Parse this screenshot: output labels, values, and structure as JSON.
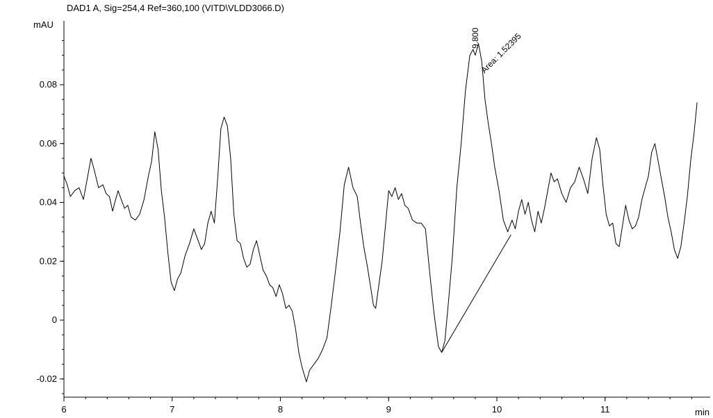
{
  "chart_data": {
    "type": "line",
    "title": "DAD1 A, Sig=254,4 Ref=360,100 (VITD\\VLDD3066.D)",
    "xlabel": "min",
    "ylabel": "mAU",
    "xlim": [
      6,
      12
    ],
    "ylim": [
      -0.02,
      0.098
    ],
    "x_ticks": [
      6,
      7,
      8,
      9,
      10,
      11
    ],
    "x_tick_labels": [
      "6",
      "7",
      "8",
      "9",
      "10",
      "11"
    ],
    "y_ticks": [
      -0.02,
      0,
      0.02,
      0.04,
      0.06,
      0.08
    ],
    "y_tick_labels": [
      "-0.02",
      "0",
      "0.02",
      "0.04",
      "0.06",
      "0.08"
    ],
    "grid": false,
    "series": [
      {
        "values": [
          [
            6.0,
            0.049
          ],
          [
            6.03,
            0.046
          ],
          [
            6.06,
            0.042
          ],
          [
            6.1,
            0.044
          ],
          [
            6.14,
            0.045
          ],
          [
            6.18,
            0.041
          ],
          [
            6.22,
            0.049
          ],
          [
            6.25,
            0.055
          ],
          [
            6.28,
            0.051
          ],
          [
            6.32,
            0.045
          ],
          [
            6.36,
            0.046
          ],
          [
            6.39,
            0.043
          ],
          [
            6.42,
            0.042
          ],
          [
            6.45,
            0.037
          ],
          [
            6.47,
            0.04
          ],
          [
            6.5,
            0.044
          ],
          [
            6.53,
            0.041
          ],
          [
            6.56,
            0.038
          ],
          [
            6.59,
            0.039
          ],
          [
            6.62,
            0.035
          ],
          [
            6.66,
            0.034
          ],
          [
            6.7,
            0.036
          ],
          [
            6.74,
            0.041
          ],
          [
            6.78,
            0.049
          ],
          [
            6.81,
            0.054
          ],
          [
            6.84,
            0.064
          ],
          [
            6.87,
            0.058
          ],
          [
            6.9,
            0.044
          ],
          [
            6.93,
            0.035
          ],
          [
            6.96,
            0.023
          ],
          [
            6.99,
            0.013
          ],
          [
            7.02,
            0.01
          ],
          [
            7.05,
            0.014
          ],
          [
            7.08,
            0.016
          ],
          [
            7.12,
            0.022
          ],
          [
            7.16,
            0.026
          ],
          [
            7.2,
            0.031
          ],
          [
            7.23,
            0.028
          ],
          [
            7.27,
            0.024
          ],
          [
            7.3,
            0.026
          ],
          [
            7.33,
            0.033
          ],
          [
            7.36,
            0.037
          ],
          [
            7.39,
            0.033
          ],
          [
            7.42,
            0.048
          ],
          [
            7.45,
            0.065
          ],
          [
            7.48,
            0.069
          ],
          [
            7.51,
            0.066
          ],
          [
            7.54,
            0.055
          ],
          [
            7.57,
            0.036
          ],
          [
            7.6,
            0.027
          ],
          [
            7.63,
            0.026
          ],
          [
            7.66,
            0.021
          ],
          [
            7.69,
            0.018
          ],
          [
            7.72,
            0.019
          ],
          [
            7.75,
            0.024
          ],
          [
            7.78,
            0.027
          ],
          [
            7.81,
            0.022
          ],
          [
            7.84,
            0.017
          ],
          [
            7.87,
            0.015
          ],
          [
            7.9,
            0.012
          ],
          [
            7.93,
            0.011
          ],
          [
            7.96,
            0.008
          ],
          [
            7.99,
            0.012
          ],
          [
            8.02,
            0.009
          ],
          [
            8.05,
            0.004
          ],
          [
            8.08,
            0.005
          ],
          [
            8.11,
            0.003
          ],
          [
            8.14,
            -0.003
          ],
          [
            8.17,
            -0.011
          ],
          [
            8.2,
            -0.016
          ],
          [
            8.24,
            -0.021
          ],
          [
            8.27,
            -0.017
          ],
          [
            8.31,
            -0.015
          ],
          [
            8.35,
            -0.013
          ],
          [
            8.39,
            -0.01
          ],
          [
            8.43,
            -0.006
          ],
          [
            8.47,
            0.005
          ],
          [
            8.51,
            0.017
          ],
          [
            8.55,
            0.03
          ],
          [
            8.59,
            0.046
          ],
          [
            8.63,
            0.052
          ],
          [
            8.67,
            0.045
          ],
          [
            8.71,
            0.042
          ],
          [
            8.74,
            0.033
          ],
          [
            8.77,
            0.025
          ],
          [
            8.8,
            0.019
          ],
          [
            8.83,
            0.012
          ],
          [
            8.86,
            0.005
          ],
          [
            8.88,
            0.004
          ],
          [
            8.91,
            0.012
          ],
          [
            8.94,
            0.02
          ],
          [
            8.97,
            0.032
          ],
          [
            9.0,
            0.044
          ],
          [
            9.03,
            0.042
          ],
          [
            9.06,
            0.045
          ],
          [
            9.09,
            0.041
          ],
          [
            9.12,
            0.043
          ],
          [
            9.15,
            0.039
          ],
          [
            9.18,
            0.038
          ],
          [
            9.22,
            0.034
          ],
          [
            9.26,
            0.033
          ],
          [
            9.3,
            0.033
          ],
          [
            9.34,
            0.031
          ],
          [
            9.38,
            0.016
          ],
          [
            9.42,
            0.002
          ],
          [
            9.46,
            -0.009
          ],
          [
            9.49,
            -0.011
          ],
          [
            9.52,
            -0.007
          ],
          [
            9.55,
            0.005
          ],
          [
            9.59,
            0.022
          ],
          [
            9.63,
            0.045
          ],
          [
            9.67,
            0.06
          ],
          [
            9.71,
            0.078
          ],
          [
            9.75,
            0.09
          ],
          [
            9.78,
            0.092
          ],
          [
            9.8,
            0.09
          ],
          [
            9.83,
            0.094
          ],
          [
            9.86,
            0.088
          ],
          [
            9.89,
            0.075
          ],
          [
            9.92,
            0.067
          ],
          [
            9.95,
            0.06
          ],
          [
            9.98,
            0.052
          ],
          [
            10.02,
            0.044
          ],
          [
            10.06,
            0.034
          ],
          [
            10.1,
            0.03
          ],
          [
            10.14,
            0.034
          ],
          [
            10.17,
            0.031
          ],
          [
            10.2,
            0.037
          ],
          [
            10.23,
            0.041
          ],
          [
            10.26,
            0.036
          ],
          [
            10.29,
            0.04
          ],
          [
            10.32,
            0.034
          ],
          [
            10.35,
            0.03
          ],
          [
            10.38,
            0.037
          ],
          [
            10.41,
            0.033
          ],
          [
            10.44,
            0.038
          ],
          [
            10.47,
            0.044
          ],
          [
            10.5,
            0.05
          ],
          [
            10.53,
            0.047
          ],
          [
            10.56,
            0.048
          ],
          [
            10.6,
            0.043
          ],
          [
            10.64,
            0.04
          ],
          [
            10.68,
            0.045
          ],
          [
            10.72,
            0.047
          ],
          [
            10.76,
            0.052
          ],
          [
            10.8,
            0.048
          ],
          [
            10.84,
            0.043
          ],
          [
            10.88,
            0.055
          ],
          [
            10.92,
            0.062
          ],
          [
            10.95,
            0.058
          ],
          [
            10.98,
            0.046
          ],
          [
            11.01,
            0.036
          ],
          [
            11.04,
            0.032
          ],
          [
            11.07,
            0.033
          ],
          [
            11.1,
            0.026
          ],
          [
            11.13,
            0.025
          ],
          [
            11.16,
            0.032
          ],
          [
            11.19,
            0.039
          ],
          [
            11.22,
            0.034
          ],
          [
            11.25,
            0.031
          ],
          [
            11.28,
            0.032
          ],
          [
            11.31,
            0.035
          ],
          [
            11.34,
            0.041
          ],
          [
            11.37,
            0.045
          ],
          [
            11.4,
            0.049
          ],
          [
            11.43,
            0.057
          ],
          [
            11.46,
            0.06
          ],
          [
            11.49,
            0.054
          ],
          [
            11.52,
            0.048
          ],
          [
            11.55,
            0.042
          ],
          [
            11.58,
            0.035
          ],
          [
            11.61,
            0.03
          ],
          [
            11.64,
            0.024
          ],
          [
            11.67,
            0.021
          ],
          [
            11.7,
            0.025
          ],
          [
            11.73,
            0.033
          ],
          [
            11.76,
            0.042
          ],
          [
            11.79,
            0.054
          ],
          [
            11.82,
            0.063
          ],
          [
            11.85,
            0.074
          ]
        ]
      }
    ],
    "baseline": [
      [
        9.49,
        -0.011
      ],
      [
        10.13,
        0.029
      ]
    ],
    "annotations": [
      {
        "text": "9.800",
        "x": 9.8,
        "y": 0.094
      },
      {
        "text": "Area: 1.52395",
        "x": 9.86,
        "y": 0.088
      }
    ],
    "colors": {
      "line": "#000000",
      "background": "#ffffff"
    }
  }
}
